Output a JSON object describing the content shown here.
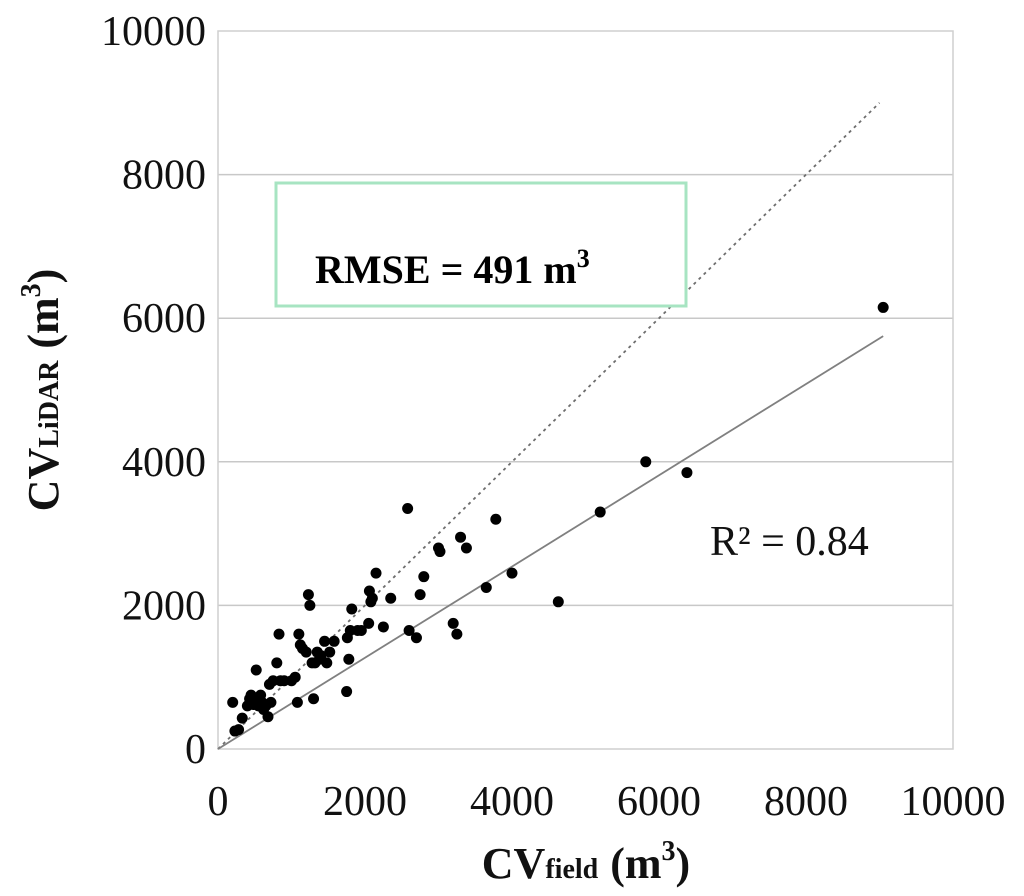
{
  "chart_data": {
    "type": "scatter",
    "title": "",
    "xlabel_main": "CV",
    "xlabel_sub": "field",
    "xlabel_unit": "(m",
    "xlabel_sup": "3",
    "xlabel_close": ")",
    "ylabel_main": "CV",
    "ylabel_sub": "LiDAR",
    "ylabel_unit": "(m",
    "ylabel_sup": "3",
    "ylabel_close": ")",
    "xlim": [
      0,
      10000
    ],
    "ylim": [
      0,
      10000
    ],
    "xticks": [
      "0",
      "2000",
      "4000",
      "6000",
      "8000",
      "10000"
    ],
    "yticks": [
      "0",
      "2000",
      "4000",
      "6000",
      "8000",
      "10000"
    ],
    "grid": "horizontal",
    "points": [
      [
        200,
        650
      ],
      [
        230,
        250
      ],
      [
        280,
        270
      ],
      [
        330,
        430
      ],
      [
        400,
        600
      ],
      [
        430,
        700
      ],
      [
        450,
        750
      ],
      [
        480,
        620
      ],
      [
        500,
        700
      ],
      [
        520,
        1100
      ],
      [
        550,
        600
      ],
      [
        580,
        750
      ],
      [
        600,
        650
      ],
      [
        620,
        550
      ],
      [
        650,
        600
      ],
      [
        680,
        450
      ],
      [
        700,
        900
      ],
      [
        720,
        650
      ],
      [
        750,
        950
      ],
      [
        800,
        1200
      ],
      [
        830,
        1600
      ],
      [
        850,
        950
      ],
      [
        900,
        950
      ],
      [
        1000,
        950
      ],
      [
        1050,
        1000
      ],
      [
        1080,
        650
      ],
      [
        1100,
        1600
      ],
      [
        1120,
        1450
      ],
      [
        1150,
        1400
      ],
      [
        1200,
        1350
      ],
      [
        1230,
        2150
      ],
      [
        1250,
        2000
      ],
      [
        1280,
        1200
      ],
      [
        1300,
        700
      ],
      [
        1320,
        1200
      ],
      [
        1350,
        1350
      ],
      [
        1380,
        1250
      ],
      [
        1400,
        1300
      ],
      [
        1450,
        1500
      ],
      [
        1480,
        1200
      ],
      [
        1520,
        1350
      ],
      [
        1580,
        1500
      ],
      [
        1750,
        800
      ],
      [
        1760,
        1550
      ],
      [
        1780,
        1250
      ],
      [
        1800,
        1650
      ],
      [
        1820,
        1950
      ],
      [
        1900,
        1650
      ],
      [
        1950,
        1650
      ],
      [
        2050,
        1750
      ],
      [
        2060,
        2200
      ],
      [
        2080,
        2050
      ],
      [
        2100,
        2100
      ],
      [
        2150,
        2450
      ],
      [
        2250,
        1700
      ],
      [
        2350,
        2100
      ],
      [
        2580,
        3350
      ],
      [
        2600,
        1650
      ],
      [
        2700,
        1550
      ],
      [
        2750,
        2150
      ],
      [
        2800,
        2400
      ],
      [
        3000,
        2800
      ],
      [
        3020,
        2750
      ],
      [
        3200,
        1750
      ],
      [
        3250,
        1600
      ],
      [
        3300,
        2950
      ],
      [
        3380,
        2800
      ],
      [
        3650,
        2250
      ],
      [
        3780,
        3200
      ],
      [
        4000,
        2450
      ],
      [
        4630,
        2050
      ],
      [
        5200,
        3300
      ],
      [
        5820,
        4000
      ],
      [
        6380,
        3850
      ],
      [
        9050,
        6150
      ]
    ],
    "lines": [
      {
        "name": "1:1",
        "style": "dotted",
        "x": [
          0,
          9000
        ],
        "y": [
          0,
          9000
        ]
      },
      {
        "name": "fit",
        "style": "solid",
        "x": [
          0,
          9050
        ],
        "y": [
          0,
          5750
        ]
      }
    ],
    "annotations": {
      "r2_label": "R² = 0.84",
      "rmse_label": "RMSE = 491 m",
      "rmse_sup": "3"
    },
    "colors": {
      "points": "#000000",
      "grid": "#c8c8c8",
      "fit_line": "#808080",
      "ref_line": "#6e6e6e",
      "rmse_box_border": "#a7e4c2"
    }
  }
}
